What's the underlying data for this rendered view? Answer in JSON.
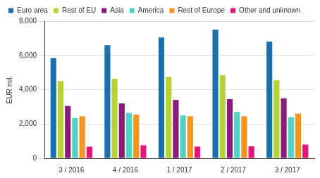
{
  "chart_data": {
    "type": "bar",
    "y_label": "EUR mil.",
    "categories": [
      "3 / 2016",
      "4 / 2016",
      "1 / 2017",
      "2 / 2017",
      "3 / 2017"
    ],
    "series": [
      {
        "name": "Euro area",
        "color": "#1a6fad",
        "values": [
          5850,
          6600,
          7050,
          7500,
          6800
        ]
      },
      {
        "name": "Rest of EU",
        "color": "#b5d334",
        "values": [
          4500,
          4650,
          4750,
          4850,
          4550
        ]
      },
      {
        "name": "Asia",
        "color": "#8a1b78",
        "values": [
          3050,
          3200,
          3400,
          3450,
          3500
        ]
      },
      {
        "name": "America",
        "color": "#4fd3c4",
        "values": [
          2350,
          2650,
          2500,
          2700,
          2400
        ]
      },
      {
        "name": "Rest of Europe",
        "color": "#f7941d",
        "values": [
          2450,
          2550,
          2450,
          2450,
          2600
        ]
      },
      {
        "name": "Other and unknown",
        "color": "#e5137a",
        "values": [
          680,
          760,
          680,
          700,
          800
        ]
      }
    ],
    "ylim": [
      0,
      8000
    ],
    "yticks": [
      0,
      {
        "value": 2000,
        "label": "2,000"
      },
      {
        "value": 4000,
        "label": "4,000"
      },
      {
        "value": 6000,
        "label": "6,000"
      },
      {
        "value": 8000,
        "label": "8,000"
      }
    ],
    "grid": true,
    "legend": "top-left"
  }
}
